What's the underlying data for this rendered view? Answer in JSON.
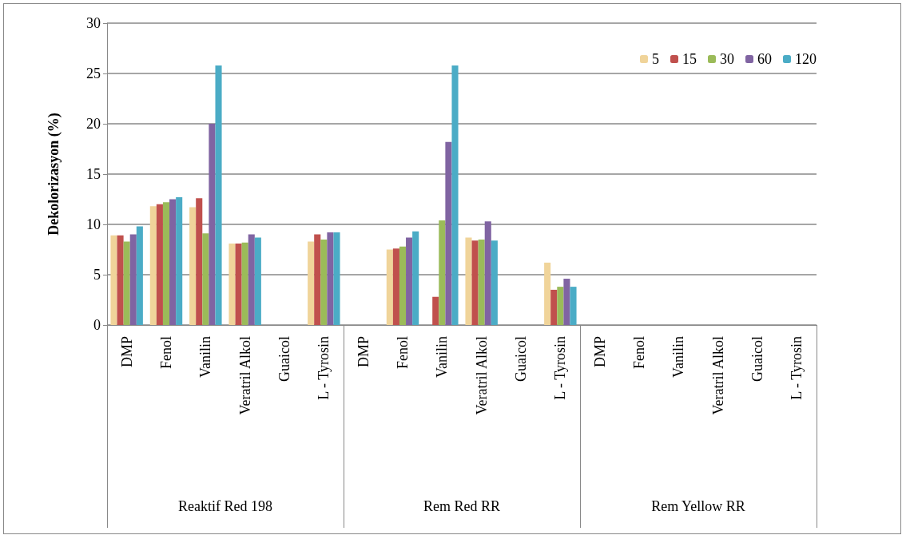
{
  "chart_data": {
    "type": "bar",
    "ylabel": "Dekolorizasyon (%)",
    "categories": [
      "DMP",
      "Fenol",
      "Vanilin",
      "Veratril Alkol",
      "Guaicol",
      "L - Tyrosin",
      "DMP",
      "Fenol",
      "Vanilin",
      "Veratril Alkol",
      "Guaicol",
      "L - Tyrosin",
      "DMP",
      "Fenol",
      "Vanilin",
      "Veratril Alkol",
      "Guaicol",
      "L - Tyrosin"
    ],
    "annotations": [
      "Reaktif Red 198",
      "Rem Red RR",
      "Rem Yellow RR"
    ],
    "series": [
      {
        "name": "5",
        "color": "#f0d49a",
        "values": [
          8.9,
          11.8,
          11.7,
          8.1,
          null,
          8.3,
          null,
          7.5,
          null,
          8.7,
          null,
          6.2,
          null,
          null,
          null,
          null,
          null,
          null
        ]
      },
      {
        "name": "15",
        "color": "#c0504d",
        "values": [
          8.9,
          12.0,
          12.6,
          8.1,
          null,
          9.0,
          null,
          7.6,
          2.8,
          8.4,
          null,
          3.5,
          null,
          null,
          null,
          null,
          null,
          null
        ]
      },
      {
        "name": "30",
        "color": "#9bbb59",
        "values": [
          8.3,
          12.2,
          9.1,
          8.2,
          null,
          8.5,
          null,
          7.8,
          10.4,
          8.5,
          null,
          3.8,
          null,
          null,
          null,
          null,
          null,
          null
        ]
      },
      {
        "name": "60",
        "color": "#8064a2",
        "values": [
          9.0,
          12.5,
          20.0,
          9.0,
          null,
          9.2,
          null,
          8.7,
          18.2,
          10.3,
          null,
          4.6,
          null,
          null,
          null,
          null,
          null,
          null
        ]
      },
      {
        "name": "120",
        "color": "#4bacc6",
        "values": [
          9.8,
          12.7,
          25.8,
          8.7,
          null,
          9.2,
          null,
          9.3,
          25.8,
          8.4,
          null,
          3.8,
          null,
          null,
          null,
          null,
          null,
          null
        ]
      }
    ],
    "ylim": [
      0,
      30
    ],
    "yticks": [
      0,
      5,
      10,
      15,
      20,
      25,
      30
    ],
    "grid": "y",
    "legend": "top right"
  }
}
